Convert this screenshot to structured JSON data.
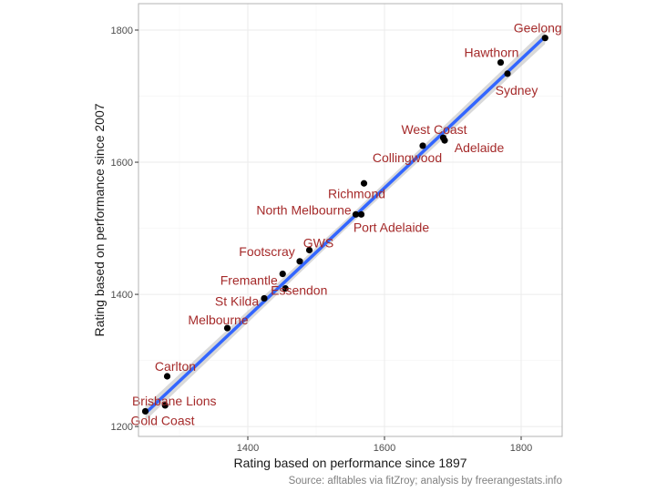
{
  "chart_data": {
    "type": "scatter",
    "xlabel": "Rating based on performance since 1897",
    "ylabel": "Rating based on performance since 2007",
    "caption": "Source: afltables via fitZroy; analysis by freerangestats.info",
    "xlim": [
      1240,
      1860
    ],
    "ylim": [
      1185,
      1840
    ],
    "x_ticks": [
      1400,
      1600,
      1800
    ],
    "y_ticks": [
      1200,
      1400,
      1600,
      1800
    ],
    "grid": true,
    "colors": {
      "point": "#000000",
      "label": "#a52a2a",
      "fit_line": "#3366ff",
      "confidence_band": "#bfbfbf",
      "grid": "#ebebeb",
      "panel_border": "#b3b3b3"
    },
    "fit_line": {
      "method": "linear",
      "x": [
        1250,
        1835
      ],
      "y": [
        1220,
        1790
      ],
      "band_halfwidth": 7
    },
    "points": [
      {
        "team": "Geelong",
        "x": 1835,
        "y": 1788
      },
      {
        "team": "Hawthorn",
        "x": 1770,
        "y": 1751
      },
      {
        "team": "Sydney",
        "x": 1780,
        "y": 1734
      },
      {
        "team": "West Coast",
        "x": 1686,
        "y": 1637
      },
      {
        "team": "Adelaide",
        "x": 1688,
        "y": 1633
      },
      {
        "team": "Collingwood",
        "x": 1656,
        "y": 1625
      },
      {
        "team": "Richmond",
        "x": 1570,
        "y": 1568
      },
      {
        "team": "North Melbourne",
        "x": 1558,
        "y": 1521
      },
      {
        "team": "Port Adelaide",
        "x": 1566,
        "y": 1521
      },
      {
        "team": "GWS",
        "x": 1490,
        "y": 1467
      },
      {
        "team": "Footscray",
        "x": 1476,
        "y": 1450
      },
      {
        "team": "Fremantle",
        "x": 1451,
        "y": 1431
      },
      {
        "team": "Essendon",
        "x": 1455,
        "y": 1409
      },
      {
        "team": "St Kilda",
        "x": 1424,
        "y": 1394
      },
      {
        "team": "Melbourne",
        "x": 1370,
        "y": 1349
      },
      {
        "team": "Carlton",
        "x": 1282,
        "y": 1276
      },
      {
        "team": "Brisbane Lions",
        "x": 1279,
        "y": 1232
      },
      {
        "team": "Gold Coast",
        "x": 1250,
        "y": 1223
      }
    ]
  }
}
